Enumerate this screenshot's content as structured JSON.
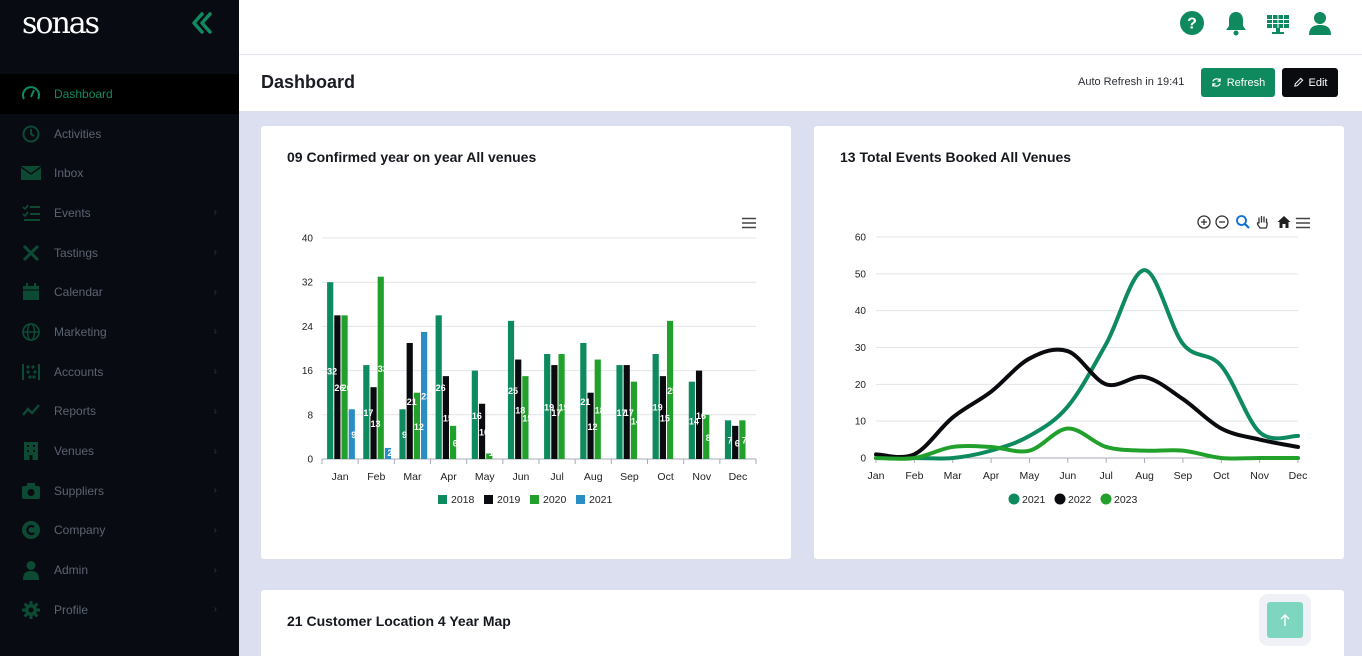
{
  "app": {
    "logo_text": "sonas"
  },
  "sidebar": {
    "items": [
      {
        "label": "Dashboard",
        "icon": "speedometer-icon",
        "active": true,
        "has_children": false
      },
      {
        "label": "Activities",
        "icon": "history-icon",
        "active": false,
        "has_children": false
      },
      {
        "label": "Inbox",
        "icon": "envelope-icon",
        "active": false,
        "has_children": false
      },
      {
        "label": "Events",
        "icon": "checklist-icon",
        "active": false,
        "has_children": true
      },
      {
        "label": "Tastings",
        "icon": "utensils-icon",
        "active": false,
        "has_children": true
      },
      {
        "label": "Calendar",
        "icon": "calendar-icon",
        "active": false,
        "has_children": true
      },
      {
        "label": "Marketing",
        "icon": "globe-icon",
        "active": false,
        "has_children": true
      },
      {
        "label": "Accounts",
        "icon": "abacus-icon",
        "active": false,
        "has_children": true
      },
      {
        "label": "Reports",
        "icon": "chart-line-icon",
        "active": false,
        "has_children": true
      },
      {
        "label": "Venues",
        "icon": "building-icon",
        "active": false,
        "has_children": true
      },
      {
        "label": "Suppliers",
        "icon": "camera-icon",
        "active": false,
        "has_children": true
      },
      {
        "label": "Company",
        "icon": "copyright-icon",
        "active": false,
        "has_children": true
      },
      {
        "label": "Admin",
        "icon": "user-tie-icon",
        "active": false,
        "has_children": true
      },
      {
        "label": "Profile",
        "icon": "cog-icon",
        "active": false,
        "has_children": true
      }
    ]
  },
  "header": {
    "page_title": "Dashboard",
    "auto_refresh": "Auto Refresh in 19:41",
    "refresh_label": "Refresh",
    "edit_label": "Edit"
  },
  "colors": {
    "accent": "#0f8a5f",
    "sidebar_bg": "#080b12",
    "series_2018": "#0e8a5f",
    "series_2019": "#0a0b0f",
    "series_2020": "#21a12c",
    "series_2021": "#2a8ec4"
  },
  "cards": {
    "confirmed": {
      "title": "09 Confirmed year on year All venues"
    },
    "events": {
      "title": "13 Total Events Booked All Venues"
    },
    "map": {
      "title": "21 Customer Location 4 Year Map"
    }
  },
  "chart_data": [
    {
      "type": "bar",
      "categories": [
        "Jan",
        "Feb",
        "Mar",
        "Apr",
        "May",
        "Jun",
        "Jul",
        "Aug",
        "Sep",
        "Oct",
        "Nov",
        "Dec"
      ],
      "ylim": [
        0,
        40
      ],
      "yticks": [
        0,
        8,
        16,
        24,
        32,
        40
      ],
      "series": [
        {
          "name": "2018",
          "color": "#0e8a5f",
          "values": [
            32,
            17,
            9,
            26,
            16,
            25,
            19,
            21,
            17,
            19,
            14,
            7
          ]
        },
        {
          "name": "2019",
          "color": "#0a0b0f",
          "values": [
            26,
            13,
            21,
            15,
            10,
            18,
            17,
            12,
            17,
            15,
            16,
            6
          ]
        },
        {
          "name": "2020",
          "color": "#21a12c",
          "values": [
            26,
            33,
            12,
            6,
            1,
            15,
            19,
            18,
            14,
            25,
            8,
            7
          ]
        },
        {
          "name": "2021",
          "color": "#2a8ec4",
          "values": [
            9,
            2,
            23,
            null,
            null,
            null,
            null,
            null,
            null,
            null,
            null,
            null
          ]
        }
      ],
      "data_labels": [
        [
          "32",
          "26",
          "26",
          "9"
        ],
        [
          "17",
          "13",
          "33",
          "2"
        ],
        [
          "9",
          "21",
          "12",
          "23"
        ],
        [
          "26",
          "15",
          "6",
          ""
        ],
        [
          "16",
          "10",
          "1",
          ""
        ],
        [
          "25",
          "18",
          "15",
          ""
        ],
        [
          "19",
          "17",
          "19",
          ""
        ],
        [
          "21",
          "12",
          "18",
          ""
        ],
        [
          "17",
          "17",
          "14",
          ""
        ],
        [
          "19",
          "15",
          "25",
          ""
        ],
        [
          "14",
          "16",
          "8",
          ""
        ],
        [
          "7",
          "6",
          "7",
          ""
        ]
      ],
      "grid": true,
      "legend": "bottom"
    },
    {
      "type": "line",
      "categories": [
        "Jan",
        "Feb",
        "Mar",
        "Apr",
        "May",
        "Jun",
        "Jul",
        "Aug",
        "Sep",
        "Oct",
        "Nov",
        "Dec"
      ],
      "ylim": [
        0,
        60
      ],
      "yticks": [
        0,
        10,
        20,
        30,
        40,
        50,
        60
      ],
      "series": [
        {
          "name": "2021",
          "color": "#0e8a5f",
          "values": [
            0,
            0,
            0,
            2,
            6,
            14,
            31,
            51,
            31,
            25,
            7,
            6
          ]
        },
        {
          "name": "2022",
          "color": "#0a0b0f",
          "values": [
            1,
            1,
            11,
            18,
            27,
            29,
            20,
            22,
            16,
            8,
            5,
            3
          ]
        },
        {
          "name": "2023",
          "color": "#21a12c",
          "values": [
            0,
            0,
            3,
            3,
            2,
            8,
            3,
            2,
            2,
            0,
            0,
            0
          ]
        }
      ],
      "grid": true,
      "legend": "bottom"
    }
  ]
}
